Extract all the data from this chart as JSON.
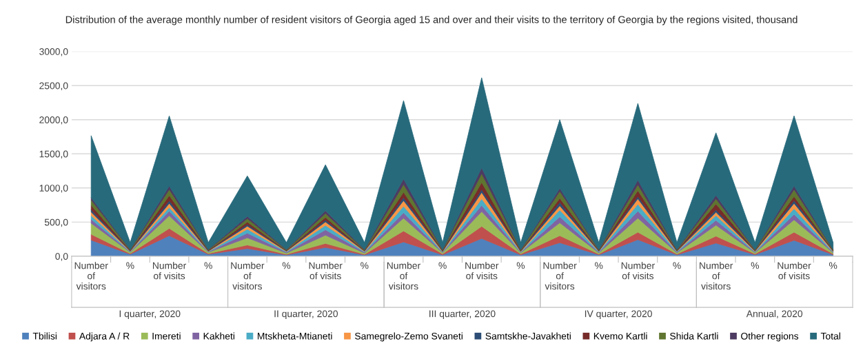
{
  "chart_data": {
    "type": "area",
    "stacked": true,
    "title": "Distribution of the average monthly number of resident visitors of Georgia aged 15 and over and their visits to the territory of Georgia by the regions visited, thousand",
    "categories": [
      "Number\nof\nvisitors",
      "%",
      "Number\nof visits",
      "%",
      "Number\nof\nvisitors",
      "%",
      "Number\nof visits",
      "%",
      "Number\nof\nvisitors",
      "%",
      "Number\nof visits",
      "%",
      "Number\nof\nvisitors",
      "%",
      "Number\nof visits",
      "%",
      "Number\nof\nvisitors",
      "%",
      "Number\nof visits",
      "%"
    ],
    "annotations": [
      "I quarter, 2020",
      "II quarter, 2020",
      "III quarter, 2020",
      "IV quarter, 2020",
      "Annual, 2020"
    ],
    "series": [
      {
        "name": "Tbilisi",
        "color": "#4f81bd",
        "values": [
          236,
          29.3,
          301,
          29.3,
          113,
          19.3,
          129,
          19.3,
          209,
          20.0,
          260,
          20.0,
          198,
          21.8,
          243,
          21.8,
          192,
          22.6,
          233,
          22.6
        ]
      },
      {
        "name": "Adjara A / R",
        "color": "#c0504d",
        "values": [
          85,
          10.4,
          107,
          10.4,
          51,
          8.7,
          58,
          8.7,
          161,
          13.7,
          178,
          13.7,
          103,
          9.8,
          109,
          9.8,
          103,
          11.6,
          119,
          11.6
        ]
      },
      {
        "name": "Imereti",
        "color": "#9bbb59",
        "values": [
          162,
          18.0,
          185,
          18.0,
          106,
          18.1,
          121,
          18.1,
          188,
          16.7,
          216,
          16.7,
          189,
          18.5,
          206,
          18.5,
          160,
          17.7,
          182,
          17.7
        ]
      },
      {
        "name": "Kakheti",
        "color": "#8064a2",
        "values": [
          58,
          6.6,
          68,
          6.6,
          69,
          11.8,
          79,
          11.8,
          79,
          7.1,
          92,
          7.1,
          88,
          9.2,
          103,
          9.2,
          72,
          7.7,
          79,
          7.7
        ]
      },
      {
        "name": "Mtskheta-Mtianeti",
        "color": "#4bacc6",
        "values": [
          55,
          5.4,
          55,
          5.4,
          58,
          9.9,
          66,
          9.9,
          95,
          7.4,
          96,
          7.4,
          100,
          9.1,
          102,
          9.1,
          69,
          8.3,
          85,
          8.3
        ]
      },
      {
        "name": "Samegrelo-Zemo Svaneti",
        "color": "#f79646",
        "values": [
          51,
          5.6,
          58,
          5.6,
          44,
          7.5,
          50,
          7.5,
          83,
          7.2,
          93,
          7.2,
          61,
          7.1,
          79,
          7.1,
          48,
          7.4,
          76,
          7.4
        ]
      },
      {
        "name": "Samtskhe-Javakheti",
        "color": "#2c4d75",
        "values": [
          34,
          4.0,
          41,
          4.0,
          24,
          4.0,
          27,
          4.0,
          45,
          3.4,
          44,
          3.4,
          52,
          3.0,
          34,
          3.0,
          37,
          4.0,
          41,
          4.0
        ]
      },
      {
        "name": "Kvemo Kartli",
        "color": "#772c2a",
        "values": [
          65,
          7.3,
          75,
          7.3,
          35,
          6.0,
          40,
          6.0,
          78,
          7.9,
          103,
          7.9,
          58,
          7.7,
          86,
          7.7,
          86,
          5.9,
          61,
          5.9
        ]
      },
      {
        "name": "Shida Kartli",
        "color": "#5f7530",
        "values": [
          79,
          8.7,
          89,
          8.7,
          51,
          8.7,
          58,
          8.7,
          116,
          10.0,
          130,
          10.0,
          103,
          7.7,
          86,
          7.7,
          75,
          10.0,
          103,
          10.0
        ]
      },
      {
        "name": "Other regions",
        "color": "#4d3b62",
        "values": [
          35,
          4.7,
          50,
          4.7,
          34,
          6.0,
          40,
          6.0,
          79,
          6.6,
          85,
          6.6,
          44,
          6.1,
          68,
          6.1,
          51,
          4.8,
          51,
          4.8
        ]
      },
      {
        "name": "Total",
        "color": "#276a7c",
        "values": [
          906,
          100,
          1027,
          100,
          592,
          100,
          672,
          100,
          1147,
          100,
          1318,
          100,
          1004,
          100,
          1123,
          100,
          915,
          100,
          1027,
          100
        ]
      }
    ],
    "ylim": [
      0,
      3000
    ],
    "yticks": [
      {
        "value": 0,
        "label": "0,0"
      },
      {
        "value": 500,
        "label": "500,0"
      },
      {
        "value": 1000,
        "label": "1000,0"
      },
      {
        "value": 1500,
        "label": "1500,0"
      },
      {
        "value": 2000,
        "label": "2000,0"
      },
      {
        "value": 2500,
        "label": "2500,0"
      },
      {
        "value": 3000,
        "label": "3000,0"
      }
    ],
    "grid": "y",
    "legend": "bottom"
  }
}
